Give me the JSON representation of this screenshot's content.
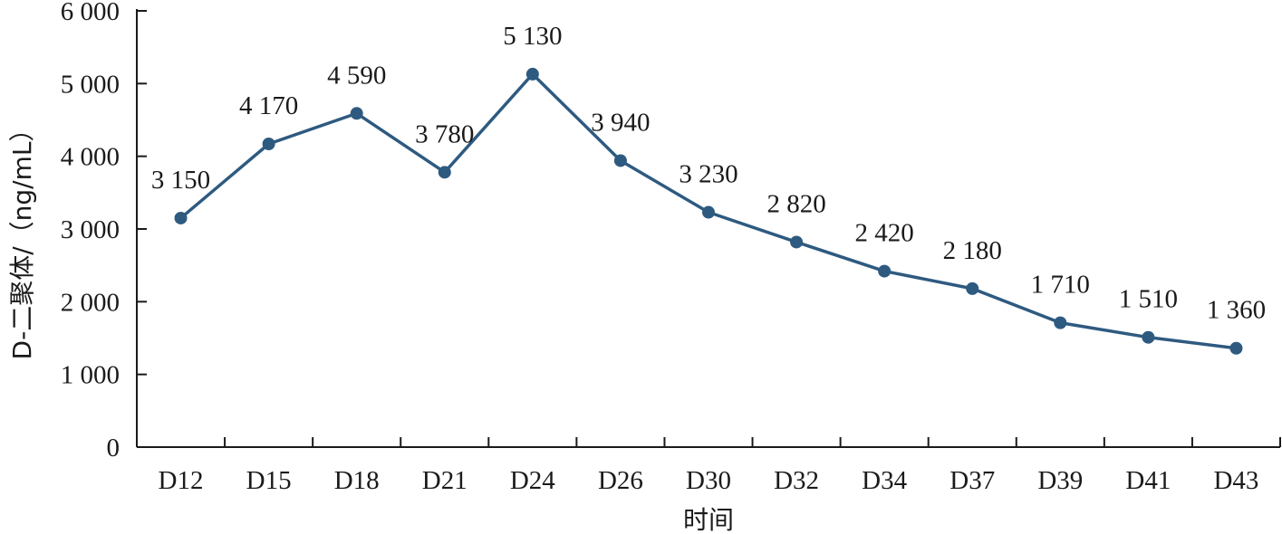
{
  "chart_data": {
    "type": "line",
    "categories": [
      "D12",
      "D15",
      "D18",
      "D21",
      "D24",
      "D26",
      "D30",
      "D32",
      "D34",
      "D37",
      "D39",
      "D41",
      "D43"
    ],
    "values": [
      3150,
      4170,
      4590,
      3780,
      5130,
      3940,
      3230,
      2820,
      2420,
      2180,
      1710,
      1510,
      1360
    ],
    "data_labels": [
      "3 150",
      "4 170",
      "4 590",
      "3 780",
      "5 130",
      "3 940",
      "3 230",
      "2 820",
      "2 420",
      "2 180",
      "1 710",
      "1 510",
      "1 360"
    ],
    "xlabel": "时间",
    "ylabel": "D-二聚体/（ng/mL）",
    "ylim": [
      0,
      6000
    ],
    "yticks": [
      0,
      1000,
      2000,
      3000,
      4000,
      5000,
      6000
    ],
    "ytick_labels": [
      "0",
      "1 000",
      "2 000",
      "3 000",
      "4 000",
      "5 000",
      "6 000"
    ],
    "grid": false,
    "colors": {
      "series": "#2e5a80",
      "axis": "#1a1a1a"
    }
  }
}
